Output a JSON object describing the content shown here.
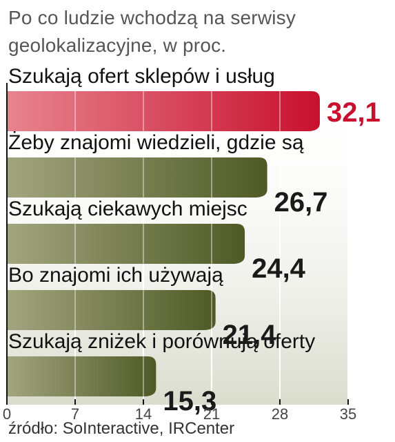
{
  "chart_title": "Po co ludzie wchodzą na serwisy geolokalizacyjne, w proc.",
  "source": "źródło: SoInteractive, IRCenter",
  "colors": {
    "highlight_bar_start": "#e8848f",
    "highlight_bar_end": "#c8102e",
    "bar_start": "#a3a57f",
    "bar_end": "#4e5a25",
    "highlight_value": "#c8102e",
    "value": "#1a1a1a",
    "band": "#d9dccd"
  },
  "chart_data": {
    "type": "bar",
    "orientation": "horizontal",
    "title": "Po co ludzie wchodzą na serwisy geolokalizacyjne, w proc.",
    "categories": [
      "Szukają ofert sklepów i usług",
      "Żeby znajomi wiedzieli, gdzie są",
      "Szukają ciekawych miejsc",
      "Bo znajomi ich używają",
      "Szukają zniżek i porównują oferty"
    ],
    "values": [
      32.1,
      26.7,
      24.4,
      21.4,
      15.3
    ],
    "value_labels": [
      "32,1",
      "26,7",
      "24,4",
      "21,4",
      "15,3"
    ],
    "highlight_index": 0,
    "xlim": [
      0,
      35
    ],
    "ticks": [
      0,
      7,
      14,
      21,
      28,
      35
    ],
    "tick_labels": [
      "0",
      "7",
      "14",
      "21",
      "28",
      "35"
    ],
    "grid": true
  }
}
